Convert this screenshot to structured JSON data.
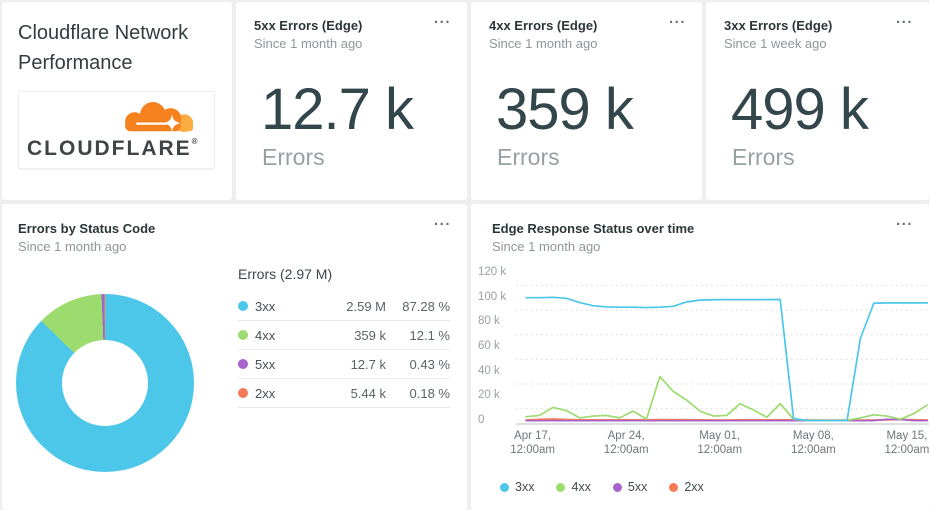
{
  "ui": {
    "menu_ellipsis": "..."
  },
  "overview_card": {
    "title": "Cloudflare Network Performance",
    "logo_wordmark": "CLOUDFLARE",
    "logo_mark": "®",
    "logo_orange": "#F6821F",
    "logo_light_orange": "#FBAD41"
  },
  "stat_cards": [
    {
      "title": "5xx Errors (Edge)",
      "subtitle": "Since 1 month ago",
      "value": "12.7 k",
      "unit": "Errors"
    },
    {
      "title": "4xx Errors (Edge)",
      "subtitle": "Since 1 month ago",
      "value": "359 k",
      "unit": "Errors"
    },
    {
      "title": "3xx Errors (Edge)",
      "subtitle": "Since 1 week ago",
      "value": "499 k",
      "unit": "Errors"
    }
  ],
  "donut_card": {
    "title": "Errors by Status Code",
    "subtitle": "Since 1 month ago"
  },
  "timeseries_card": {
    "title": "Edge Response Status over time",
    "subtitle": "Since 1 month ago"
  },
  "chart_data": [
    {
      "type": "pie",
      "donut": true,
      "title": "Errors by Status Code",
      "total_label": "Errors (2.97 M)",
      "start_angle_deg": 0,
      "direction": "clockwise",
      "slices": [
        {
          "label": "3xx",
          "value": 2590000,
          "value_text": "2.59 M",
          "percent": 87.28,
          "percent_text": "87.28 %",
          "color": "#4CC6E9"
        },
        {
          "label": "4xx",
          "value": 359000,
          "value_text": "359 k",
          "percent": 12.1,
          "percent_text": "12.1 %",
          "color": "#9CDB6E"
        },
        {
          "label": "5xx",
          "value": 12700,
          "value_text": "12.7 k",
          "percent": 0.43,
          "percent_text": "0.43 %",
          "color": "#A763CB"
        },
        {
          "label": "2xx",
          "value": 5440,
          "value_text": "5.44 k",
          "percent": 0.18,
          "percent_text": "0.18 %",
          "color": "#F47A57"
        }
      ]
    },
    {
      "type": "line",
      "title": "Edge Response Status over time",
      "grid": "dotted-horizontal",
      "legend_position": "bottom",
      "ylim": [
        0,
        120000
      ],
      "values_unit": "thousands",
      "y_ticks": [
        {
          "label": "120 k",
          "value": 120
        },
        {
          "label": "100 k",
          "value": 100
        },
        {
          "label": "80 k",
          "value": 80
        },
        {
          "label": "60 k",
          "value": 60
        },
        {
          "label": "40 k",
          "value": 40
        },
        {
          "label": "20 k",
          "value": 20
        },
        {
          "label": "0",
          "value": 0
        }
      ],
      "minor_gridlines": [
        110,
        90,
        70,
        50,
        30,
        10
      ],
      "x_ticks": [
        {
          "line1": "Apr 17,",
          "line2": "12:00am"
        },
        {
          "line1": "Apr 24,",
          "line2": "12:00am"
        },
        {
          "line1": "May 01,",
          "line2": "12:00am"
        },
        {
          "line1": "May 08,",
          "line2": "12:00am"
        },
        {
          "line1": "May 15,",
          "line2": "12:00am"
        }
      ],
      "series": [
        {
          "name": "3xx",
          "color": "#4CC6E9",
          "values": [
            100,
            100,
            100.3,
            99.5,
            96,
            93.5,
            92.5,
            92.3,
            92.3,
            92,
            92.3,
            93,
            96.5,
            98,
            98.3,
            98.4,
            98.4,
            98.4,
            98.4,
            98.5,
            2,
            0.4,
            0.4,
            0.4,
            0.4,
            67,
            95.5,
            95.8,
            95.8,
            95.8,
            95.8
          ]
        },
        {
          "name": "4xx",
          "color": "#9CDB6E",
          "values": [
            3.5,
            4.5,
            11,
            8.5,
            2.5,
            4,
            4.5,
            2.5,
            8,
            1.5,
            36,
            24,
            17,
            8,
            4,
            4.5,
            14,
            9,
            3,
            14,
            1.5,
            0.4,
            0.4,
            0.4,
            0.5,
            2.5,
            5,
            4,
            1.5,
            6,
            13
          ]
        },
        {
          "name": "5xx",
          "color": "#A763CB",
          "values": [
            0.25,
            0.25,
            0.25,
            0.25,
            0.25,
            0.25,
            0.25,
            0.25,
            0.25,
            0.25,
            0.25,
            0.25,
            0.25,
            0.25,
            0.25,
            0.25,
            0.25,
            0.25,
            0.25,
            0.25,
            0.25,
            0.25,
            0.25,
            0.25,
            0.25,
            0.25,
            0.3,
            1.4,
            1.2,
            0.3,
            0.25
          ]
        },
        {
          "name": "2xx",
          "color": "#F47A57",
          "values": [
            0.8,
            1.3,
            1.6,
            1.2,
            0.9,
            0.9,
            0.9,
            0.9,
            1.0,
            0.9,
            1.1,
            1.1,
            1.0,
            0.9,
            0.8,
            0.8,
            0.9,
            0.9,
            0.9,
            1.0,
            0.9,
            0.8,
            0.7,
            0.7,
            0.7,
            0.7,
            0.8,
            0.9,
            1.2,
            1.0,
            0.8
          ]
        }
      ]
    }
  ]
}
